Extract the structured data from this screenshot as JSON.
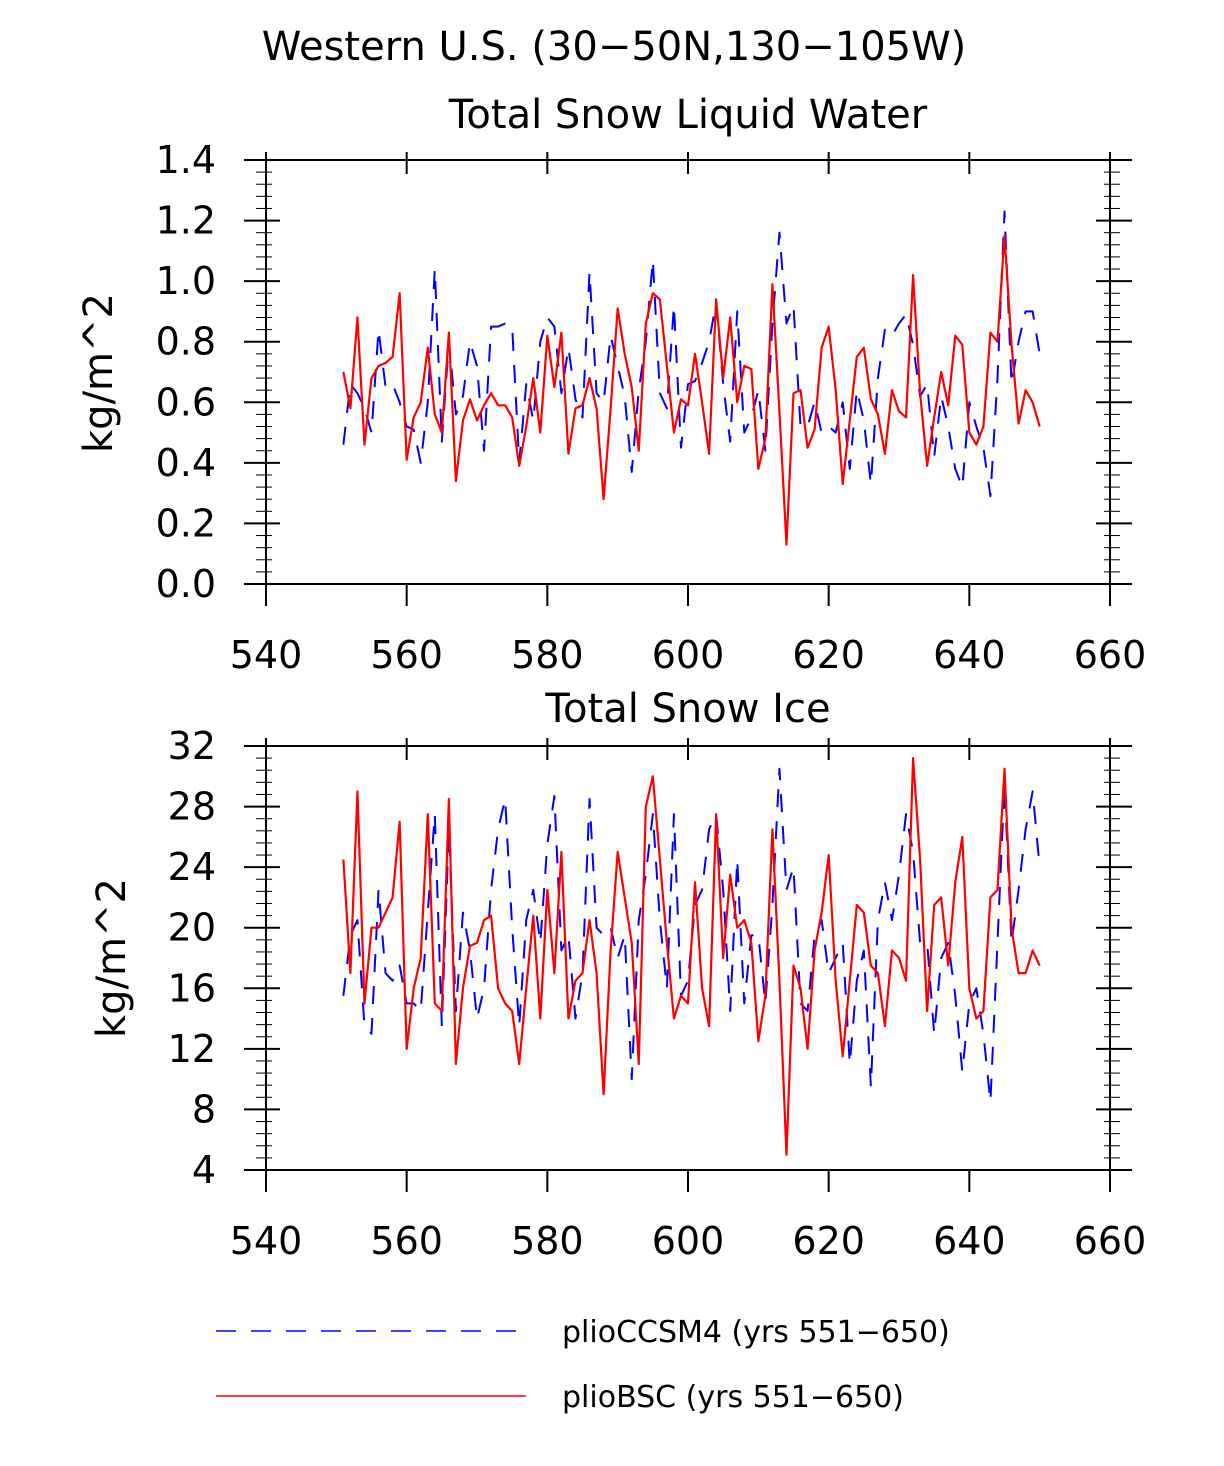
{
  "figure": {
    "title": "Western U.S. (30−50N,130−105W)"
  },
  "legend": {
    "items": [
      {
        "name": "plioCCSM4 (yrs 551−650)",
        "color": "#0000ff",
        "style": "dashed"
      },
      {
        "name": "plioBSC (yrs 551−650)",
        "color": "#ff0000",
        "style": "solid"
      }
    ]
  },
  "chart_data": [
    {
      "type": "line",
      "title": "Total Snow Liquid Water",
      "xlabel": "",
      "ylabel": "kg/m^2",
      "xlim": [
        540,
        660
      ],
      "ylim": [
        0.0,
        1.4
      ],
      "xticks": [
        540,
        560,
        580,
        600,
        620,
        640,
        660
      ],
      "xtick_labels": [
        "540",
        "560",
        "580",
        "600",
        "620",
        "640",
        "660"
      ],
      "yticks": [
        0.0,
        0.2,
        0.4,
        0.6,
        0.8,
        1.0,
        1.2,
        1.4
      ],
      "ytick_labels": [
        "0.0",
        "0.2",
        "0.4",
        "0.6",
        "0.8",
        "1.0",
        "1.2",
        "1.4"
      ],
      "grid": false,
      "x_start": 551,
      "x_step": 1,
      "series": [
        {
          "name": "plioCCSM4 (yrs 551−650)",
          "color": "#0000ff",
          "style": "dashed",
          "values": [
            0.46,
            0.66,
            0.63,
            0.58,
            0.5,
            0.84,
            0.65,
            0.66,
            0.6,
            0.52,
            0.51,
            0.4,
            0.6,
            1.04,
            0.47,
            0.8,
            0.56,
            0.62,
            0.8,
            0.72,
            0.44,
            0.85,
            0.85,
            0.86,
            0.85,
            0.4,
            0.66,
            0.54,
            0.8,
            0.88,
            0.85,
            0.63,
            0.78,
            0.61,
            0.55,
            1.03,
            0.63,
            0.6,
            0.82,
            0.72,
            0.62,
            0.37,
            0.64,
            0.8,
            1.07,
            0.63,
            0.58,
            0.92,
            0.45,
            0.66,
            0.67,
            0.73,
            0.8,
            0.93,
            0.66,
            0.47,
            0.9,
            0.5,
            0.55,
            0.64,
            0.44,
            0.86,
            1.16,
            0.86,
            0.92,
            0.52,
            0.52,
            0.6,
            0.5,
            0.52,
            0.5,
            0.6,
            0.38,
            0.64,
            0.54,
            0.33,
            0.68,
            0.84,
            0.82,
            0.86,
            0.89,
            0.79,
            0.62,
            0.66,
            0.42,
            0.62,
            0.52,
            0.38,
            0.32,
            0.6,
            0.52,
            0.45,
            0.29,
            0.68,
            1.23,
            0.66,
            0.8,
            0.9,
            0.9,
            0.76
          ]
        },
        {
          "name": "plioBSC (yrs 551−650)",
          "color": "#ff0000",
          "style": "solid",
          "values": [
            0.7,
            0.58,
            0.88,
            0.46,
            0.68,
            0.72,
            0.73,
            0.75,
            0.96,
            0.41,
            0.55,
            0.6,
            0.78,
            0.56,
            0.5,
            0.83,
            0.34,
            0.54,
            0.61,
            0.54,
            0.59,
            0.63,
            0.59,
            0.59,
            0.55,
            0.39,
            0.52,
            0.68,
            0.5,
            0.82,
            0.65,
            0.83,
            0.43,
            0.58,
            0.59,
            0.68,
            0.58,
            0.28,
            0.58,
            0.91,
            0.76,
            0.65,
            0.44,
            0.86,
            0.96,
            0.94,
            0.72,
            0.5,
            0.61,
            0.59,
            0.76,
            0.6,
            0.43,
            0.94,
            0.68,
            0.88,
            0.6,
            0.72,
            0.71,
            0.38,
            0.48,
            0.99,
            0.57,
            0.13,
            0.63,
            0.64,
            0.45,
            0.51,
            0.78,
            0.85,
            0.64,
            0.33,
            0.54,
            0.75,
            0.78,
            0.61,
            0.56,
            0.43,
            0.64,
            0.57,
            0.55,
            1.02,
            0.63,
            0.39,
            0.55,
            0.7,
            0.59,
            0.82,
            0.79,
            0.5,
            0.46,
            0.52,
            0.83,
            0.8,
            1.15,
            0.79,
            0.53,
            0.64,
            0.6,
            0.52
          ]
        }
      ]
    },
    {
      "type": "line",
      "title": "Total Snow Ice",
      "xlabel": "",
      "ylabel": "kg/m^2",
      "xlim": [
        540,
        660
      ],
      "ylim": [
        4,
        32
      ],
      "xticks": [
        540,
        560,
        580,
        600,
        620,
        640,
        660
      ],
      "xtick_labels": [
        "540",
        "560",
        "580",
        "600",
        "620",
        "640",
        "660"
      ],
      "yticks": [
        4,
        8,
        12,
        16,
        20,
        24,
        28,
        32
      ],
      "ytick_labels": [
        "4",
        "8",
        "12",
        "16",
        "20",
        "24",
        "28",
        "32"
      ],
      "grid": false,
      "x_start": 551,
      "x_step": 1,
      "series": [
        {
          "name": "plioCCSM4 (yrs 551−650)",
          "color": "#0000ff",
          "style": "dashed",
          "values": [
            15.5,
            19.5,
            20.5,
            13.5,
            13.0,
            22.5,
            17.0,
            16.5,
            17.5,
            15.0,
            15.0,
            14.5,
            21.0,
            27.5,
            13.5,
            26.5,
            14.5,
            21.0,
            18.5,
            14.0,
            16.0,
            22.5,
            26.5,
            28.5,
            20.0,
            13.5,
            20.5,
            22.5,
            19.0,
            25.5,
            28.7,
            18.5,
            19.5,
            14.0,
            17.0,
            28.5,
            20.0,
            19.5,
            20.0,
            18.0,
            19.5,
            10.0,
            20.5,
            23.5,
            27.5,
            20.5,
            16.0,
            27.5,
            15.5,
            16.5,
            21.5,
            22.5,
            26.5,
            27.5,
            22.5,
            14.5,
            24.5,
            15.0,
            19.5,
            19.5,
            15.0,
            21.5,
            30.5,
            22.5,
            24.0,
            15.0,
            14.5,
            19.5,
            20.5,
            17.0,
            18.0,
            19.0,
            11.0,
            16.5,
            18.5,
            9.5,
            20.5,
            23.0,
            20.5,
            23.5,
            27.5,
            25.0,
            19.0,
            19.0,
            13.0,
            18.0,
            19.0,
            15.5,
            10.5,
            15.0,
            16.0,
            13.0,
            8.5,
            19.0,
            29.5,
            19.0,
            22.5,
            26.5,
            29.0,
            24.0
          ]
        },
        {
          "name": "plioBSC (yrs 551−650)",
          "color": "#ff0000",
          "style": "solid",
          "values": [
            24.5,
            17.0,
            29.0,
            15.0,
            20.0,
            20.0,
            21.0,
            22.0,
            27.0,
            12.0,
            16.0,
            18.0,
            27.5,
            15.0,
            14.5,
            28.5,
            11.0,
            16.0,
            18.8,
            19.0,
            20.5,
            20.8,
            16.0,
            15.0,
            14.5,
            11.0,
            16.0,
            20.8,
            14.0,
            22.5,
            17.0,
            25.0,
            14.0,
            16.5,
            17.0,
            20.5,
            17.0,
            9.0,
            18.5,
            25.0,
            22.0,
            19.0,
            11.0,
            28.0,
            30.0,
            24.5,
            19.0,
            14.0,
            15.5,
            15.0,
            23.0,
            16.0,
            13.5,
            27.5,
            18.0,
            23.5,
            20.0,
            20.5,
            19.0,
            12.5,
            15.5,
            26.5,
            16.5,
            5.0,
            17.5,
            16.0,
            12.0,
            18.5,
            21.0,
            24.8,
            16.5,
            11.5,
            16.5,
            21.5,
            21.0,
            17.5,
            17.0,
            13.5,
            18.5,
            18.0,
            16.5,
            31.2,
            24.5,
            14.5,
            21.5,
            22.0,
            17.5,
            23.0,
            26.0,
            16.0,
            14.0,
            14.5,
            22.0,
            22.5,
            30.5,
            20.0,
            17.0,
            17.0,
            18.5,
            17.5
          ]
        }
      ]
    }
  ]
}
